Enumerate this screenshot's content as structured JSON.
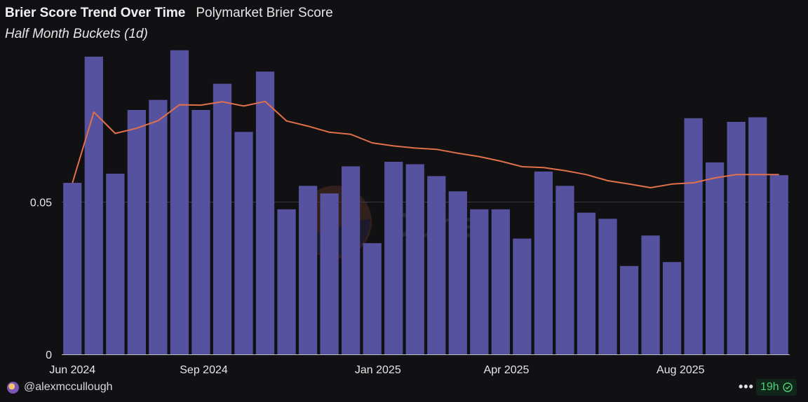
{
  "header": {
    "title": "Brier Score Trend Over Time",
    "subtitle": "Polymarket Brier Score",
    "caption": "Half Month Buckets (1d)"
  },
  "footer": {
    "author": "@alexmccullough",
    "freshness": "19h",
    "more_icon": "more-dots-icon",
    "status_icon": "check-circle-icon"
  },
  "watermark": "Dune",
  "colors": {
    "background": "#111113",
    "bar": "#5652a0",
    "line": "#e0704c",
    "grid": "#3a3a40",
    "badge_text": "#4fd17a"
  },
  "chart_data": {
    "type": "bar",
    "x": [
      "2024-06-01",
      "2024-06-16",
      "2024-07-01",
      "2024-07-16",
      "2024-08-01",
      "2024-08-16",
      "2024-09-01",
      "2024-09-16",
      "2024-10-01",
      "2024-10-16",
      "2024-11-01",
      "2024-11-16",
      "2024-12-01",
      "2024-12-16",
      "2025-01-01",
      "2025-01-16",
      "2025-02-01",
      "2025-02-16",
      "2025-03-01",
      "2025-03-16",
      "2025-04-01",
      "2025-04-16",
      "2025-05-01",
      "2025-05-16",
      "2025-06-01",
      "2025-06-16",
      "2025-07-01",
      "2025-07-16",
      "2025-08-01",
      "2025-08-16",
      "2025-09-01",
      "2025-09-16",
      "2025-10-01",
      "2025-10-16"
    ],
    "series": [
      {
        "type": "bar",
        "values": [
          0.0563,
          0.0977,
          0.0593,
          0.0802,
          0.0835,
          0.0998,
          0.0802,
          0.0888,
          0.073,
          0.0928,
          0.0476,
          0.0553,
          0.0528,
          0.0617,
          0.0365,
          0.0632,
          0.0624,
          0.0585,
          0.0535,
          0.0476,
          0.0476,
          0.038,
          0.06,
          0.0553,
          0.0465,
          0.0445,
          0.029,
          0.039,
          0.0303,
          0.0775,
          0.063,
          0.0763,
          0.0778,
          0.0588
        ]
      },
      {
        "type": "line",
        "values": [
          0.0563,
          0.0795,
          0.0725,
          0.0742,
          0.0767,
          0.0819,
          0.0818,
          0.0829,
          0.0815,
          0.083,
          0.0766,
          0.0749,
          0.0729,
          0.0722,
          0.0694,
          0.0684,
          0.0677,
          0.0673,
          0.066,
          0.0649,
          0.0634,
          0.0616,
          0.0613,
          0.0603,
          0.059,
          0.057,
          0.0559,
          0.0547,
          0.0559,
          0.0563,
          0.0579,
          0.059,
          0.059,
          0.059
        ]
      }
    ],
    "xticks": [
      "Jun 2024",
      "Sep 2024",
      "Jan 2025",
      "Apr 2025",
      "Aug 2025"
    ],
    "xtick_dates": [
      "2024-06-01",
      "2024-09-01",
      "2025-01-01",
      "2025-04-01",
      "2025-08-01"
    ],
    "yticks": [
      0,
      0.05
    ],
    "ytick_labels": [
      "0",
      "0.05"
    ],
    "ylim": [
      0,
      0.1025
    ],
    "xlabel": "",
    "ylabel": "",
    "grid": "horizontal",
    "legend": "none"
  }
}
